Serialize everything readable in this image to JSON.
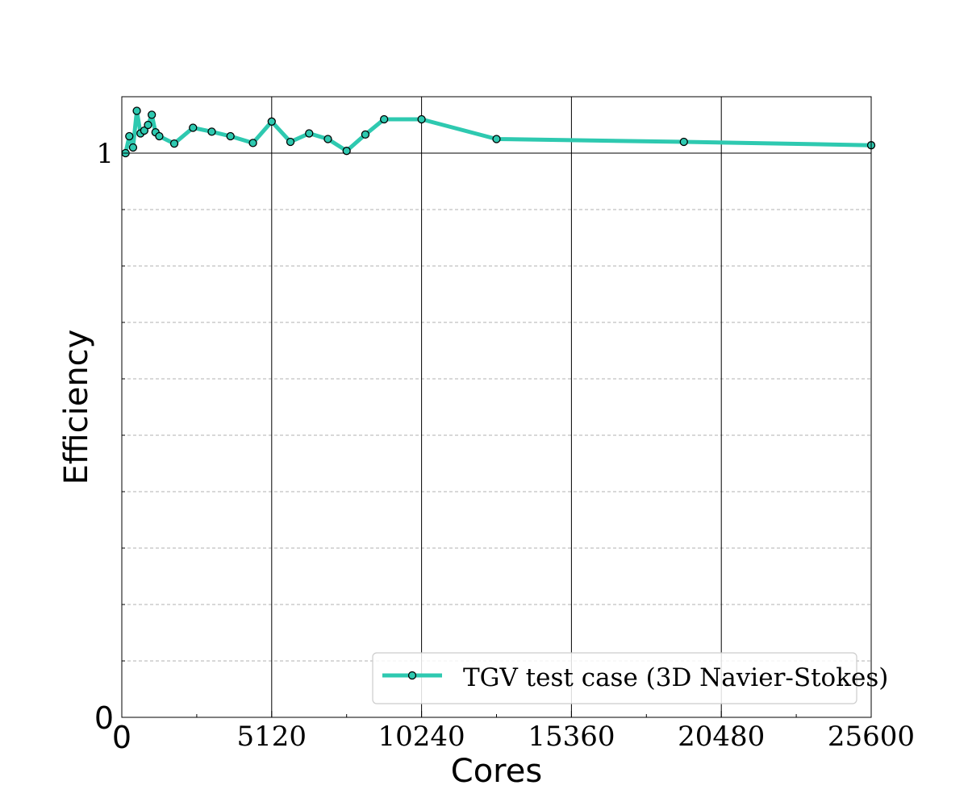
{
  "chart_data": {
    "type": "line",
    "title": "",
    "xlabel": "Cores",
    "ylabel": "Efficiency",
    "xlim": [
      0,
      25600
    ],
    "ylim": [
      0,
      1.1
    ],
    "x_ticks": [
      {
        "value": 0,
        "label": "0"
      },
      {
        "value": 5120,
        "label": "5120"
      },
      {
        "value": 10240,
        "label": "10240"
      },
      {
        "value": 15360,
        "label": "15360"
      },
      {
        "value": 20480,
        "label": "20480"
      },
      {
        "value": 25600,
        "label": "25600"
      }
    ],
    "y_ticks": [
      {
        "value": 0,
        "label": "0"
      },
      {
        "value": 1,
        "label": "1"
      }
    ],
    "y_minor_gridlines": [
      0.1,
      0.2,
      0.3,
      0.4,
      0.5,
      0.6,
      0.7,
      0.8,
      0.9,
      1.1
    ],
    "grid": true,
    "legend_position": "bottom-right",
    "series": [
      {
        "name": "TGV test case (3D Navier-Stokes)",
        "color": "#2ec9b0",
        "marker_color": "#2ec9b0",
        "marker_edge": "#000000",
        "x": [
          128,
          256,
          384,
          512,
          640,
          768,
          896,
          1024,
          1152,
          1280,
          1792,
          2432,
          3072,
          3712,
          4480,
          5120,
          5760,
          6400,
          7040,
          7680,
          8320,
          8960,
          10240,
          12800,
          19200,
          25600
        ],
        "y": [
          1.0,
          1.03,
          1.01,
          1.075,
          1.035,
          1.04,
          1.05,
          1.068,
          1.037,
          1.03,
          1.017,
          1.045,
          1.038,
          1.03,
          1.018,
          1.056,
          1.02,
          1.035,
          1.025,
          1.004,
          1.033,
          1.06,
          1.06,
          1.025,
          1.02,
          1.014
        ]
      }
    ]
  }
}
